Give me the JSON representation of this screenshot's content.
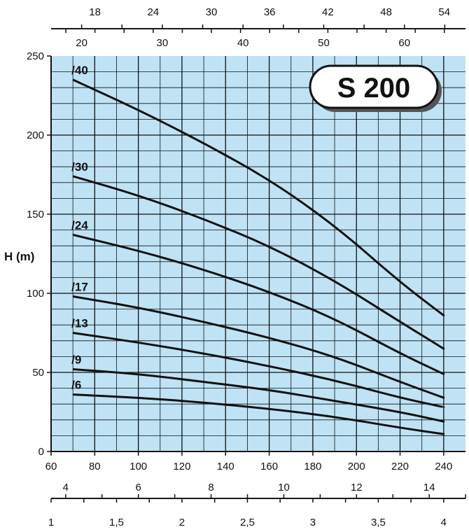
{
  "chart_data": {
    "type": "line",
    "title": "S 200",
    "ylabel": "H (m)",
    "xlabel": "",
    "xlim": [
      60,
      250
    ],
    "ylim": [
      0,
      250
    ],
    "grid": true,
    "background_color": "#bfe3f5",
    "grid_color": "#111111",
    "line_color": "#111111",
    "x_ticks": [
      "60",
      "80",
      "100",
      "120",
      "140",
      "160",
      "180",
      "200",
      "220",
      "240"
    ],
    "y_ticks": [
      "0",
      "50",
      "100",
      "150",
      "200",
      "250"
    ],
    "secondary_axes": {
      "top_outer": {
        "ticks": [
          "18",
          "24",
          "30",
          "36",
          "42",
          "48",
          "54"
        ],
        "values": [
          18,
          24,
          30,
          36,
          42,
          48,
          54
        ]
      },
      "top_inner": {
        "ticks": [
          "20",
          "30",
          "40",
          "50",
          "60"
        ],
        "values": [
          20,
          30,
          40,
          50,
          60
        ]
      },
      "bottom_mid": {
        "ticks": [
          "4",
          "6",
          "8",
          "10",
          "12",
          "14"
        ],
        "values": [
          4,
          6,
          8,
          10,
          12,
          14
        ]
      },
      "bottom_low": {
        "ticks": [
          "1",
          "1,5",
          "2",
          "2,5",
          "3",
          "3,5",
          "4"
        ],
        "values": [
          1,
          1.5,
          2,
          2.5,
          3,
          3.5,
          4
        ]
      }
    },
    "series": [
      {
        "name": "/40",
        "x": [
          70,
          100,
          130,
          160,
          190,
          220,
          240
        ],
        "values": [
          235,
          216,
          195,
          172,
          143,
          107,
          86
        ]
      },
      {
        "name": "/30",
        "x": [
          70,
          100,
          130,
          160,
          190,
          220,
          240
        ],
        "values": [
          174,
          162,
          147,
          130,
          108,
          82,
          65
        ]
      },
      {
        "name": "/24",
        "x": [
          70,
          100,
          130,
          160,
          190,
          220,
          240
        ],
        "values": [
          137,
          127,
          115,
          101,
          84,
          62,
          49
        ]
      },
      {
        "name": "/17",
        "x": [
          70,
          100,
          130,
          160,
          190,
          220,
          240
        ],
        "values": [
          98,
          91,
          82,
          72,
          60,
          44,
          34
        ]
      },
      {
        "name": "/13",
        "x": [
          70,
          100,
          130,
          160,
          190,
          220,
          240
        ],
        "values": [
          75,
          69,
          62,
          54,
          45,
          34,
          28
        ]
      },
      {
        "name": "/9",
        "x": [
          70,
          100,
          130,
          160,
          190,
          220,
          240
        ],
        "values": [
          52,
          49,
          44,
          39,
          32,
          25,
          19
        ]
      },
      {
        "name": "/6",
        "x": [
          70,
          100,
          130,
          160,
          190,
          220,
          240
        ],
        "values": [
          36,
          34,
          31,
          27,
          22,
          15,
          11
        ]
      }
    ]
  }
}
